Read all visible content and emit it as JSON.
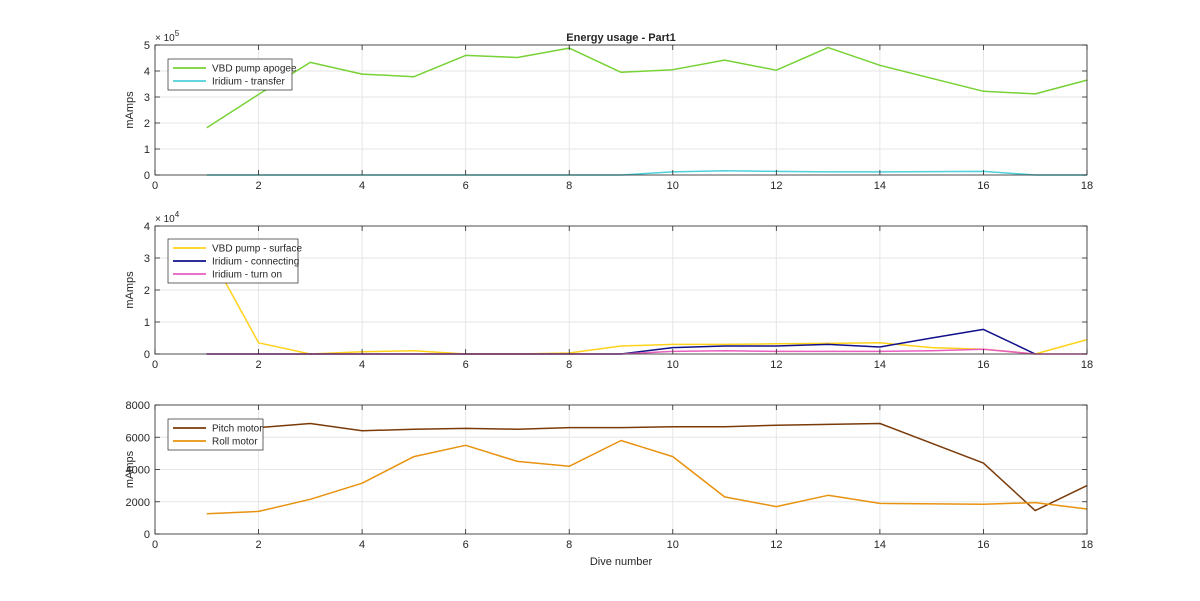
{
  "chart_data": {
    "type": "line",
    "title": "Energy usage - Part1",
    "xlabel": "Dive number",
    "subplots": [
      {
        "ylabel": "mAmps",
        "exponent_label": "× 10",
        "exponent_power": "5",
        "xlim": [
          0,
          18
        ],
        "ylim": [
          0,
          5
        ],
        "yticks": [
          0,
          1,
          2,
          3,
          4,
          5
        ],
        "xticks": [
          0,
          2,
          4,
          6,
          8,
          10,
          12,
          14,
          16,
          18
        ],
        "grid": true,
        "legend_position": "top-left",
        "series": [
          {
            "name": "VBD pump apogee",
            "color": "#77d235",
            "x": [
              1,
              2,
              3,
              4,
              5,
              6,
              7,
              8,
              9,
              10,
              11,
              12,
              13,
              14,
              16,
              17,
              18
            ],
            "y": [
              1.82,
              3.1,
              4.33,
              3.88,
              3.78,
              4.6,
              4.52,
              4.88,
              3.95,
              4.05,
              4.42,
              4.03,
              4.9,
              4.22,
              3.22,
              3.12,
              3.65
            ]
          },
          {
            "name": "Iridium - transfer",
            "color": "#4fd1d9",
            "x": [
              1,
              2,
              3,
              4,
              5,
              6,
              7,
              8,
              9,
              10,
              11,
              12,
              13,
              14,
              15,
              16,
              17,
              18
            ],
            "y": [
              0,
              0,
              0,
              0,
              0,
              0,
              0,
              0,
              0,
              0.12,
              0.16,
              0.14,
              0.12,
              0.12,
              0.13,
              0.14,
              0,
              0
            ]
          }
        ]
      },
      {
        "ylabel": "mAmps",
        "exponent_label": "× 10",
        "exponent_power": "4",
        "xlim": [
          0,
          18
        ],
        "ylim": [
          0,
          4
        ],
        "yticks": [
          0,
          1,
          2,
          3,
          4
        ],
        "xticks": [
          0,
          2,
          4,
          6,
          8,
          10,
          12,
          14,
          16,
          18
        ],
        "grid": true,
        "legend_position": "top-left",
        "series": [
          {
            "name": "VBD pump - surface",
            "color": "#ffd21a",
            "x": [
              1,
              2,
              3,
              4,
              5,
              6,
              7,
              8,
              9,
              10,
              11,
              12,
              13,
              14,
              15,
              16,
              17,
              18
            ],
            "y": [
              3.3,
              0.35,
              0,
              0.07,
              0.1,
              0,
              0,
              0.03,
              0.25,
              0.3,
              0.3,
              0.32,
              0.33,
              0.35,
              0.2,
              0.15,
              0,
              0.45
            ]
          },
          {
            "name": "Iridium - connecting",
            "color": "#10108a",
            "x": [
              1,
              2,
              3,
              4,
              5,
              6,
              7,
              8,
              9,
              10,
              11,
              12,
              13,
              14,
              15,
              16,
              17
            ],
            "y": [
              0,
              0,
              0,
              0,
              0,
              0,
              0,
              0,
              0,
              0.2,
              0.25,
              0.25,
              0.3,
              0.22,
              0.5,
              0.77,
              0
            ]
          },
          {
            "name": "Iridium - turn on",
            "color": "#e85fbf",
            "x": [
              1,
              2,
              3,
              4,
              5,
              6,
              7,
              8,
              9,
              10,
              11,
              12,
              13,
              14,
              15,
              16,
              17,
              18
            ],
            "y": [
              0,
              0,
              0,
              0,
              0,
              0,
              0,
              0,
              0,
              0.08,
              0.1,
              0.08,
              0.08,
              0.08,
              0.1,
              0.15,
              0,
              0
            ]
          }
        ]
      },
      {
        "ylabel": "mAmps",
        "xlim": [
          0,
          18
        ],
        "ylim": [
          0,
          8000
        ],
        "yticks": [
          0,
          2000,
          4000,
          6000,
          8000
        ],
        "xticks": [
          0,
          2,
          4,
          6,
          8,
          10,
          12,
          14,
          16,
          18
        ],
        "grid": true,
        "legend_position": "top-left",
        "series": [
          {
            "name": "Pitch motor",
            "color": "#7a3b0a",
            "x": [
              1,
              2,
              3,
              4,
              5,
              6,
              7,
              8,
              9,
              10,
              11,
              12,
              13,
              14,
              16,
              17,
              18
            ],
            "y": [
              6550,
              6600,
              6850,
              6400,
              6500,
              6550,
              6500,
              6600,
              6600,
              6650,
              6650,
              6750,
              6800,
              6850,
              4400,
              1450,
              3000
            ]
          },
          {
            "name": "Roll motor",
            "color": "#e8920f",
            "x": [
              1,
              2,
              3,
              4,
              5,
              6,
              7,
              8,
              9,
              10,
              11,
              12,
              13,
              14,
              16,
              17,
              18
            ],
            "y": [
              1250,
              1400,
              2150,
              3150,
              4800,
              5500,
              4500,
              4200,
              5800,
              4800,
              2300,
              1700,
              2400,
              1900,
              1850,
              1950,
              1550
            ]
          }
        ]
      }
    ]
  }
}
